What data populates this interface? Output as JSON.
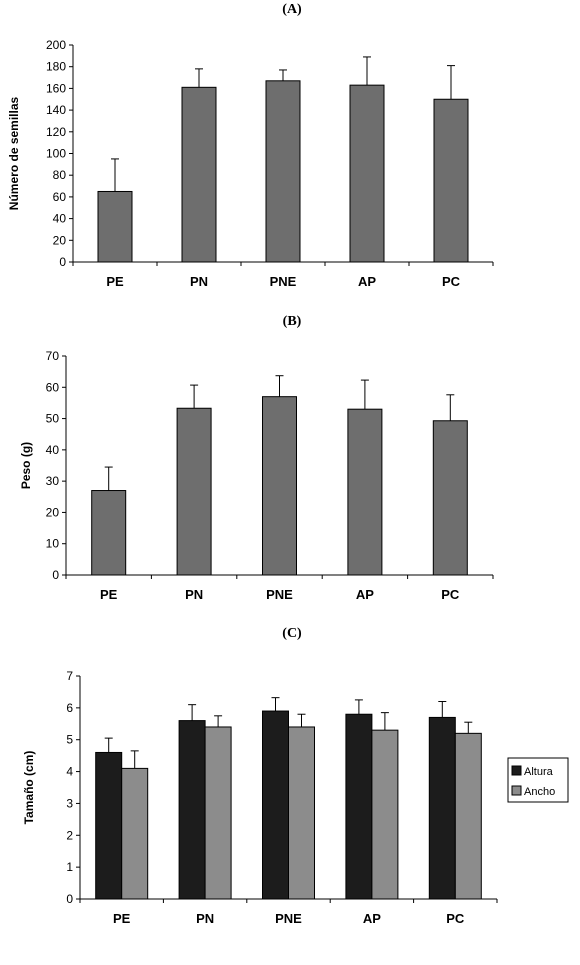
{
  "chart_data": [
    {
      "type": "bar",
      "title": "(A)",
      "ylabel": "Número de semillas",
      "xlabel": "",
      "categories": [
        "PE",
        "PN",
        "PNE",
        "AP",
        "PC"
      ],
      "series": [
        {
          "values": [
            65,
            161,
            167,
            163,
            150
          ],
          "errors": [
            30,
            17,
            10,
            26,
            31
          ],
          "color": "#6e6e6e"
        }
      ],
      "ylim": [
        0,
        200
      ],
      "yticks": [
        0,
        20,
        40,
        60,
        80,
        100,
        120,
        140,
        160,
        180,
        200
      ],
      "grid": false,
      "legend": null
    },
    {
      "type": "bar",
      "title": "(B)",
      "ylabel": "Peso (g)",
      "xlabel": "",
      "categories": [
        "PE",
        "PN",
        "PNE",
        "AP",
        "PC"
      ],
      "series": [
        {
          "values": [
            27,
            53.3,
            57,
            53,
            49.3
          ],
          "errors": [
            7.5,
            7.4,
            6.7,
            9.3,
            8.3
          ],
          "color": "#6e6e6e"
        }
      ],
      "ylim": [
        0,
        70
      ],
      "yticks": [
        0,
        10,
        20,
        30,
        40,
        50,
        60,
        70
      ],
      "grid": false,
      "legend": null
    },
    {
      "type": "bar",
      "title": "(C)",
      "ylabel": "Tamaño (cm)",
      "xlabel": "",
      "categories": [
        "PE",
        "PN",
        "PNE",
        "AP",
        "PC"
      ],
      "series": [
        {
          "name": "Altura",
          "values": [
            4.6,
            5.6,
            5.9,
            5.8,
            5.7
          ],
          "errors": [
            0.45,
            0.5,
            0.42,
            0.45,
            0.5
          ],
          "color": "#1c1c1c"
        },
        {
          "name": "Ancho",
          "values": [
            4.1,
            5.4,
            5.4,
            5.3,
            5.2
          ],
          "errors": [
            0.55,
            0.35,
            0.4,
            0.55,
            0.35
          ],
          "color": "#8c8c8c"
        }
      ],
      "ylim": [
        0,
        7
      ],
      "yticks": [
        0,
        1,
        2,
        3,
        4,
        5,
        6,
        7
      ],
      "grid": false,
      "legend": "right"
    }
  ]
}
